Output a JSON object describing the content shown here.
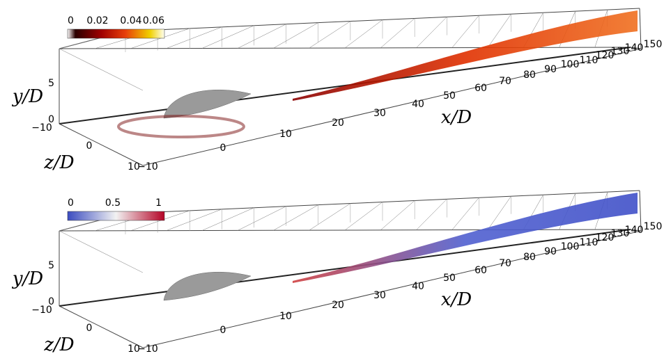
{
  "panels": [
    {
      "colorbar": {
        "ticks": [
          "0",
          "0.02",
          "0.04",
          "0.06"
        ]
      },
      "x_axis": {
        "label": "x/D",
        "ticks": [
          "−10",
          "0",
          "10",
          "20",
          "30",
          "40",
          "50",
          "60",
          "70",
          "80",
          "90",
          "100",
          "110",
          "120",
          "130",
          "140",
          "150"
        ]
      },
      "y_axis": {
        "label": "y/D",
        "ticks": [
          "0",
          "5"
        ]
      },
      "z_axis": {
        "label": "z/D",
        "ticks": [
          "−10",
          "0",
          "10"
        ]
      }
    },
    {
      "colorbar": {
        "ticks": [
          "0",
          "0.5",
          "1"
        ]
      },
      "x_axis": {
        "label": "x/D",
        "ticks": [
          "−10",
          "0",
          "10",
          "20",
          "30",
          "40",
          "50",
          "60",
          "70",
          "80",
          "90",
          "100",
          "110",
          "120",
          "130",
          "140",
          "150"
        ]
      },
      "y_axis": {
        "label": "y/D",
        "ticks": [
          "0",
          "5"
        ]
      },
      "z_axis": {
        "label": "z/D",
        "ticks": [
          "−10",
          "0",
          "10"
        ]
      }
    }
  ]
}
